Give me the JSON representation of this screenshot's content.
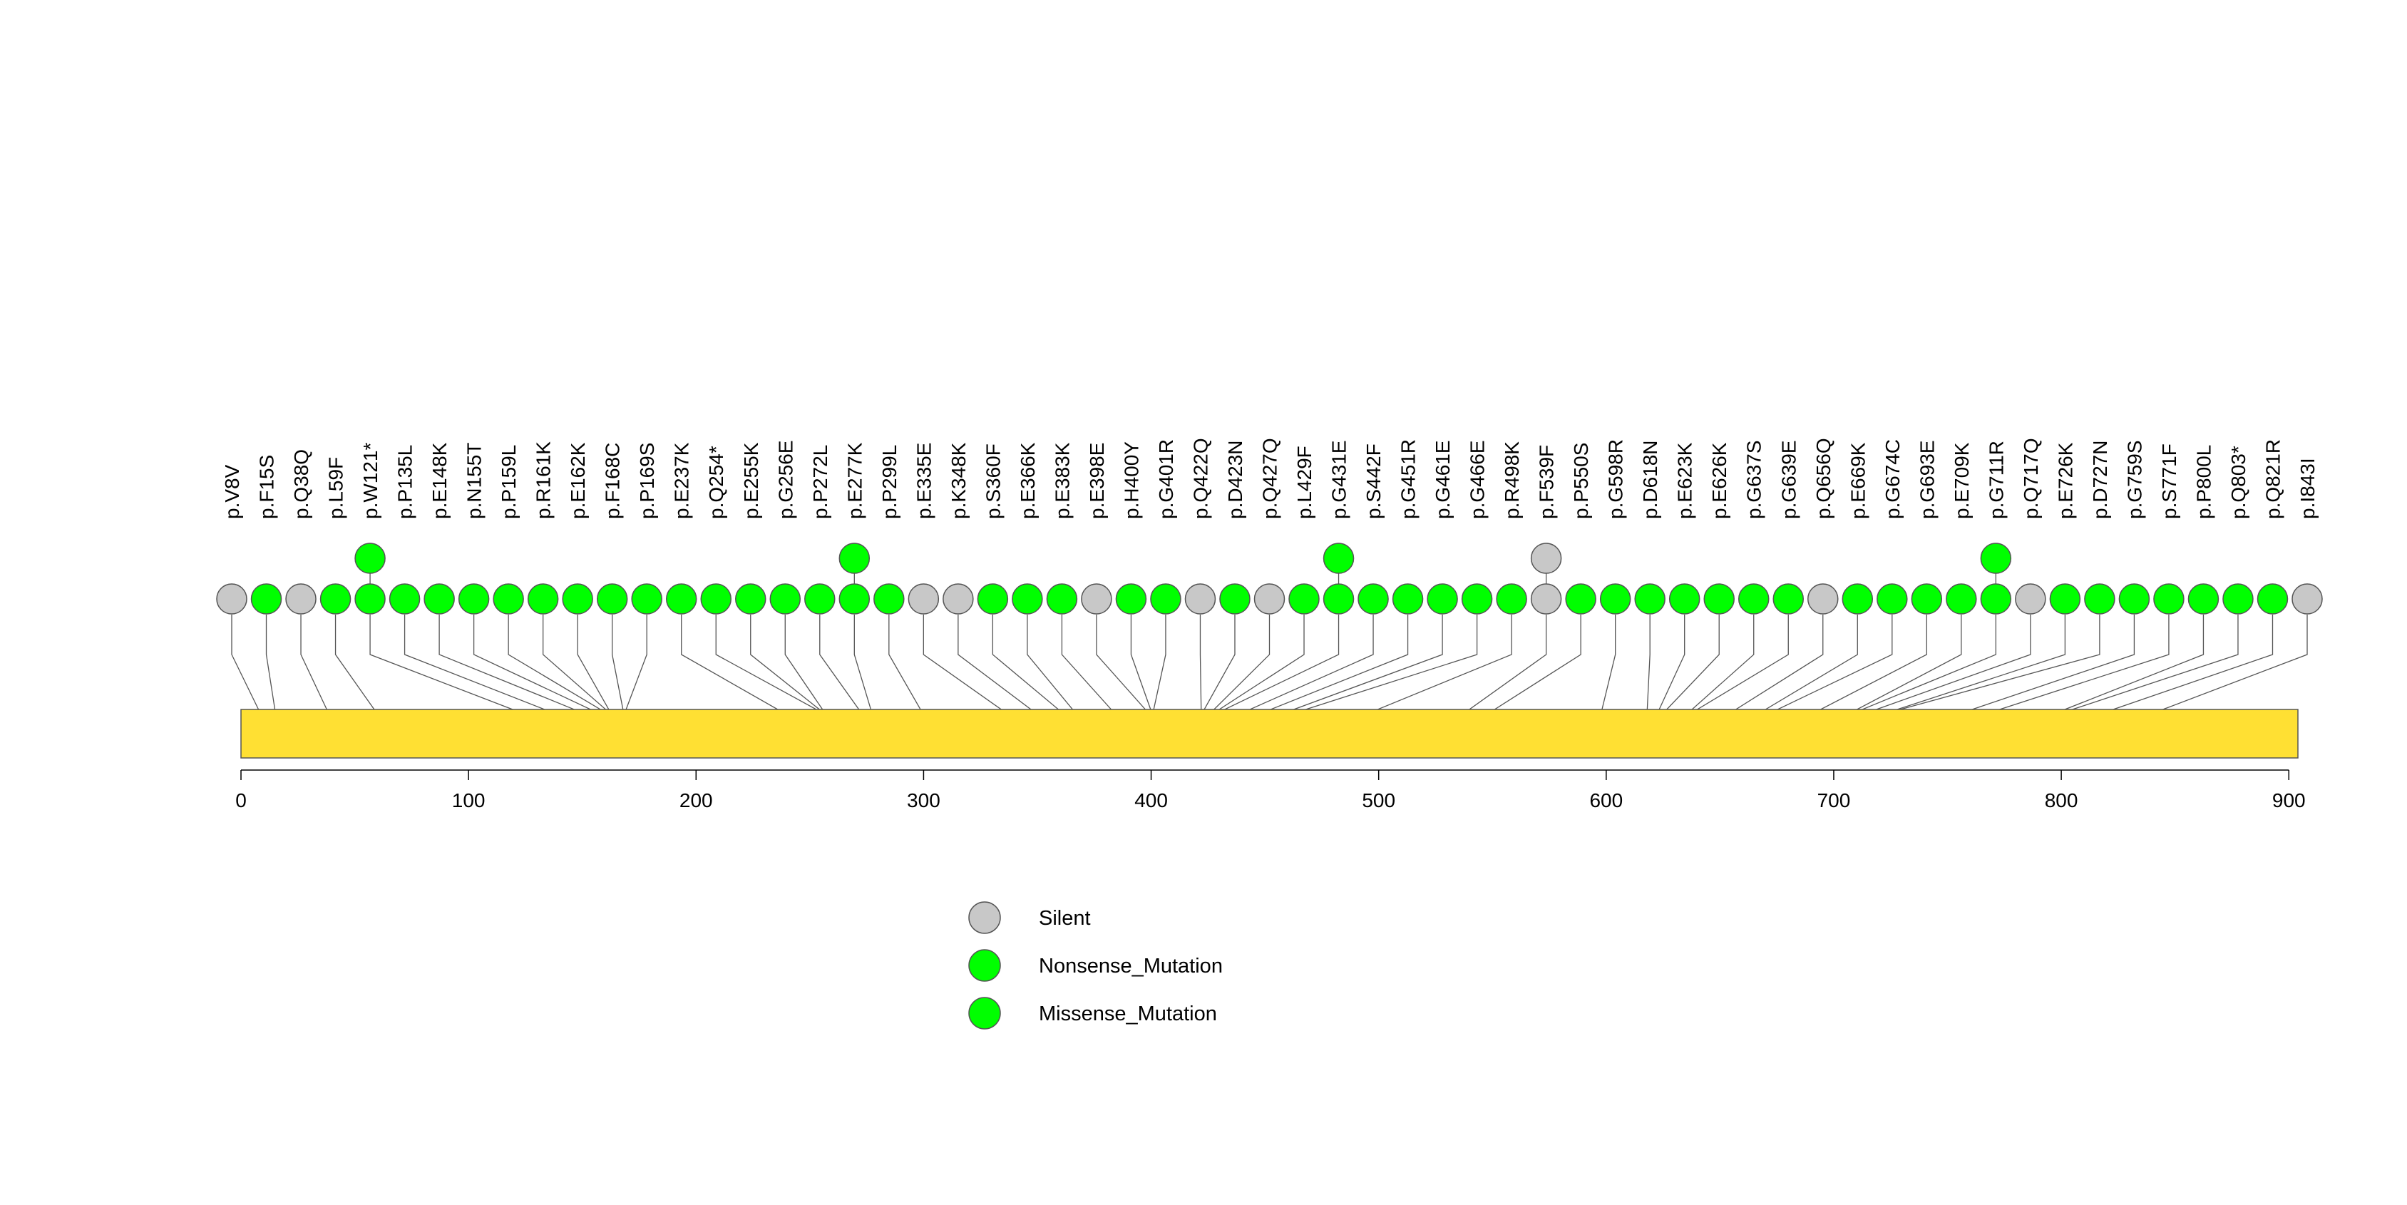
{
  "chart_data": {
    "type": "lollipop",
    "protein_length": 904,
    "xlim": [
      0,
      904
    ],
    "x_ticks": [
      0,
      100,
      200,
      300,
      400,
      500,
      600,
      700,
      800,
      900
    ],
    "protein_color": "#FFE033",
    "colors": {
      "Silent": "#C8C8C8",
      "Nonsense_Mutation": "#00FF00",
      "Missense_Mutation": "#00FF00"
    },
    "legend": [
      {
        "label": "Silent",
        "color": "#C8C8C8"
      },
      {
        "label": "Nonsense_Mutation",
        "color": "#00FF00"
      },
      {
        "label": "Missense_Mutation",
        "color": "#00FF00"
      }
    ],
    "mutations": [
      {
        "label": "p.V8V",
        "pos": 8,
        "type": "Silent",
        "count": 1
      },
      {
        "label": "p.F15S",
        "pos": 15,
        "type": "Missense_Mutation",
        "count": 1
      },
      {
        "label": "p.Q38Q",
        "pos": 38,
        "type": "Silent",
        "count": 1
      },
      {
        "label": "p.L59F",
        "pos": 59,
        "type": "Missense_Mutation",
        "count": 1
      },
      {
        "label": "p.W121*",
        "pos": 121,
        "type": "Nonsense_Mutation",
        "count": 2
      },
      {
        "label": "p.P135L",
        "pos": 135,
        "type": "Missense_Mutation",
        "count": 1
      },
      {
        "label": "p.E148K",
        "pos": 148,
        "type": "Missense_Mutation",
        "count": 1
      },
      {
        "label": "p.N155T",
        "pos": 155,
        "type": "Missense_Mutation",
        "count": 1
      },
      {
        "label": "p.P159L",
        "pos": 159,
        "type": "Missense_Mutation",
        "count": 1
      },
      {
        "label": "p.R161K",
        "pos": 161,
        "type": "Missense_Mutation",
        "count": 1
      },
      {
        "label": "p.E162K",
        "pos": 162,
        "type": "Missense_Mutation",
        "count": 1
      },
      {
        "label": "p.F168C",
        "pos": 168,
        "type": "Missense_Mutation",
        "count": 1
      },
      {
        "label": "p.P169S",
        "pos": 169,
        "type": "Missense_Mutation",
        "count": 1
      },
      {
        "label": "p.E237K",
        "pos": 237,
        "type": "Missense_Mutation",
        "count": 1
      },
      {
        "label": "p.Q254*",
        "pos": 254,
        "type": "Nonsense_Mutation",
        "count": 1
      },
      {
        "label": "p.E255K",
        "pos": 255,
        "type": "Missense_Mutation",
        "count": 1
      },
      {
        "label": "p.G256E",
        "pos": 256,
        "type": "Missense_Mutation",
        "count": 1
      },
      {
        "label": "p.P272L",
        "pos": 272,
        "type": "Missense_Mutation",
        "count": 1
      },
      {
        "label": "p.E277K",
        "pos": 277,
        "type": "Missense_Mutation",
        "count": 2
      },
      {
        "label": "p.P299L",
        "pos": 299,
        "type": "Missense_Mutation",
        "count": 1
      },
      {
        "label": "p.E335E",
        "pos": 335,
        "type": "Silent",
        "count": 1
      },
      {
        "label": "p.K348K",
        "pos": 348,
        "type": "Silent",
        "count": 1
      },
      {
        "label": "p.S360F",
        "pos": 360,
        "type": "Missense_Mutation",
        "count": 1
      },
      {
        "label": "p.E366K",
        "pos": 366,
        "type": "Missense_Mutation",
        "count": 1
      },
      {
        "label": "p.E383K",
        "pos": 383,
        "type": "Missense_Mutation",
        "count": 1
      },
      {
        "label": "p.E398E",
        "pos": 398,
        "type": "Silent",
        "count": 1
      },
      {
        "label": "p.H400Y",
        "pos": 400,
        "type": "Missense_Mutation",
        "count": 1
      },
      {
        "label": "p.G401R",
        "pos": 401,
        "type": "Missense_Mutation",
        "count": 1
      },
      {
        "label": "p.Q422Q",
        "pos": 422,
        "type": "Silent",
        "count": 1
      },
      {
        "label": "p.D423N",
        "pos": 423,
        "type": "Missense_Mutation",
        "count": 1
      },
      {
        "label": "p.Q427Q",
        "pos": 427,
        "type": "Silent",
        "count": 1
      },
      {
        "label": "p.L429F",
        "pos": 429,
        "type": "Missense_Mutation",
        "count": 1
      },
      {
        "label": "p.G431E",
        "pos": 431,
        "type": "Missense_Mutation",
        "count": 2
      },
      {
        "label": "p.S442F",
        "pos": 442,
        "type": "Missense_Mutation",
        "count": 1
      },
      {
        "label": "p.G451R",
        "pos": 451,
        "type": "Missense_Mutation",
        "count": 1
      },
      {
        "label": "p.G461E",
        "pos": 461,
        "type": "Missense_Mutation",
        "count": 1
      },
      {
        "label": "p.G466E",
        "pos": 466,
        "type": "Missense_Mutation",
        "count": 1
      },
      {
        "label": "p.R498K",
        "pos": 498,
        "type": "Missense_Mutation",
        "count": 1
      },
      {
        "label": "p.F539F",
        "pos": 539,
        "type": "Silent",
        "count": 2
      },
      {
        "label": "p.P550S",
        "pos": 550,
        "type": "Missense_Mutation",
        "count": 1
      },
      {
        "label": "p.G598R",
        "pos": 598,
        "type": "Missense_Mutation",
        "count": 1
      },
      {
        "label": "p.D618N",
        "pos": 618,
        "type": "Missense_Mutation",
        "count": 1
      },
      {
        "label": "p.E623K",
        "pos": 623,
        "type": "Missense_Mutation",
        "count": 1
      },
      {
        "label": "p.E626K",
        "pos": 626,
        "type": "Missense_Mutation",
        "count": 1
      },
      {
        "label": "p.G637S",
        "pos": 637,
        "type": "Missense_Mutation",
        "count": 1
      },
      {
        "label": "p.G639E",
        "pos": 639,
        "type": "Missense_Mutation",
        "count": 1
      },
      {
        "label": "p.Q656Q",
        "pos": 656,
        "type": "Silent",
        "count": 1
      },
      {
        "label": "p.E669K",
        "pos": 669,
        "type": "Missense_Mutation",
        "count": 1
      },
      {
        "label": "p.G674C",
        "pos": 674,
        "type": "Missense_Mutation",
        "count": 1
      },
      {
        "label": "p.G693E",
        "pos": 693,
        "type": "Missense_Mutation",
        "count": 1
      },
      {
        "label": "p.E709K",
        "pos": 709,
        "type": "Missense_Mutation",
        "count": 1
      },
      {
        "label": "p.G711R",
        "pos": 711,
        "type": "Missense_Mutation",
        "count": 2
      },
      {
        "label": "p.Q717Q",
        "pos": 717,
        "type": "Silent",
        "count": 1
      },
      {
        "label": "p.E726K",
        "pos": 726,
        "type": "Missense_Mutation",
        "count": 1
      },
      {
        "label": "p.D727N",
        "pos": 727,
        "type": "Missense_Mutation",
        "count": 1
      },
      {
        "label": "p.G759S",
        "pos": 759,
        "type": "Missense_Mutation",
        "count": 1
      },
      {
        "label": "p.S771F",
        "pos": 771,
        "type": "Missense_Mutation",
        "count": 1
      },
      {
        "label": "p.P800L",
        "pos": 800,
        "type": "Missense_Mutation",
        "count": 1
      },
      {
        "label": "p.Q803*",
        "pos": 803,
        "type": "Nonsense_Mutation",
        "count": 1
      },
      {
        "label": "p.Q821R",
        "pos": 821,
        "type": "Missense_Mutation",
        "count": 1
      },
      {
        "label": "p.I843I",
        "pos": 843,
        "type": "Silent",
        "count": 1
      }
    ]
  }
}
